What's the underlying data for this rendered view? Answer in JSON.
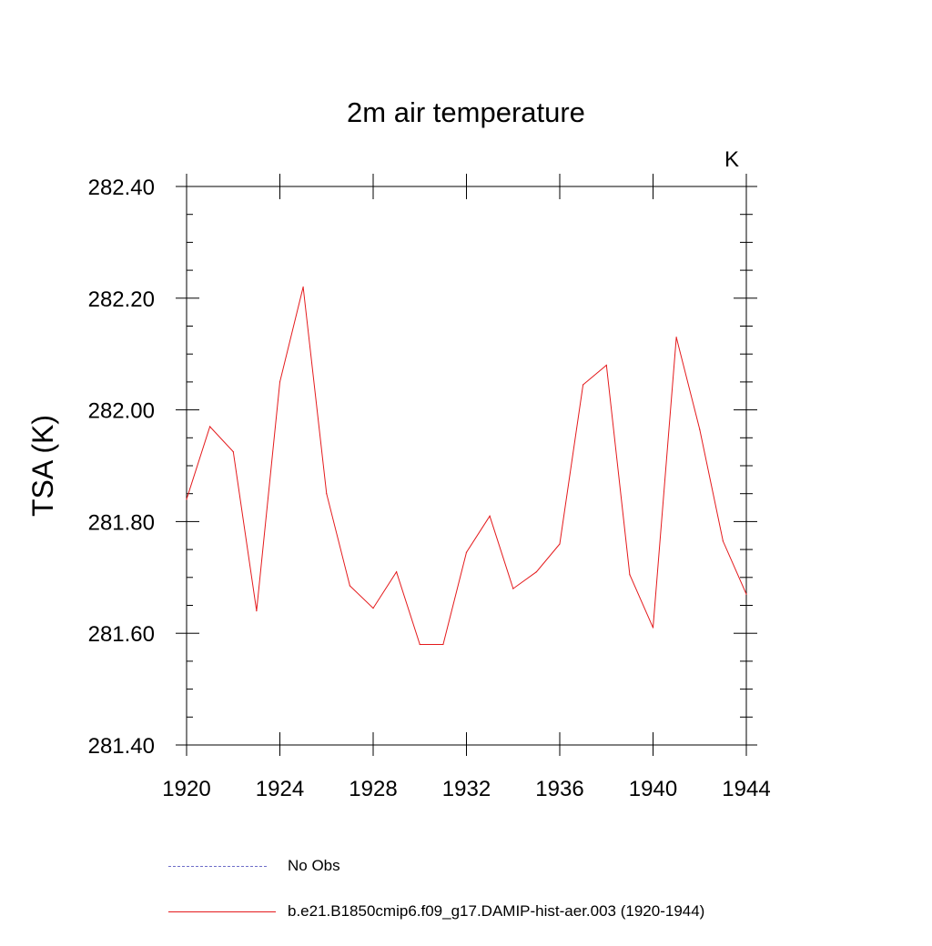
{
  "chart_data": {
    "type": "line",
    "title": "2m air temperature",
    "units": "K",
    "ylabel": "TSA  (K)",
    "xlabel": "",
    "xlim": [
      1920,
      1944
    ],
    "ylim": [
      281.4,
      282.4
    ],
    "xticks": [
      1920,
      1924,
      1928,
      1932,
      1936,
      1940,
      1944
    ],
    "xtick_labels": [
      "1920",
      "1924",
      "1928",
      "1932",
      "1936",
      "1940",
      "1944"
    ],
    "yticks": [
      281.4,
      281.6,
      281.8,
      282.0,
      282.2,
      282.4
    ],
    "ytick_labels": [
      "281.40",
      "281.60",
      "281.80",
      "282.00",
      "282.20",
      "282.40"
    ],
    "grid": false,
    "legend_position": "bottom",
    "series": [
      {
        "name": "b.e21.B1850cmip6.f09_g17.DAMIP-hist-aer.003 (1920-1944)",
        "color": "#e41a1c",
        "style": "solid",
        "x": [
          1920,
          1921,
          1922,
          1923,
          1924,
          1925,
          1926,
          1927,
          1928,
          1929,
          1930,
          1931,
          1932,
          1933,
          1934,
          1935,
          1936,
          1937,
          1938,
          1939,
          1940,
          1941,
          1942,
          1943,
          1944
        ],
        "values": [
          281.84,
          281.97,
          281.925,
          281.64,
          282.05,
          282.22,
          281.85,
          281.685,
          281.645,
          281.71,
          281.58,
          281.58,
          281.745,
          281.81,
          281.68,
          281.71,
          281.76,
          282.045,
          282.08,
          281.705,
          281.61,
          282.13,
          281.965,
          281.765,
          281.67
        ]
      },
      {
        "name": "No Obs",
        "color": "#6e6ec8",
        "style": "dashed",
        "x": [],
        "values": []
      }
    ]
  }
}
